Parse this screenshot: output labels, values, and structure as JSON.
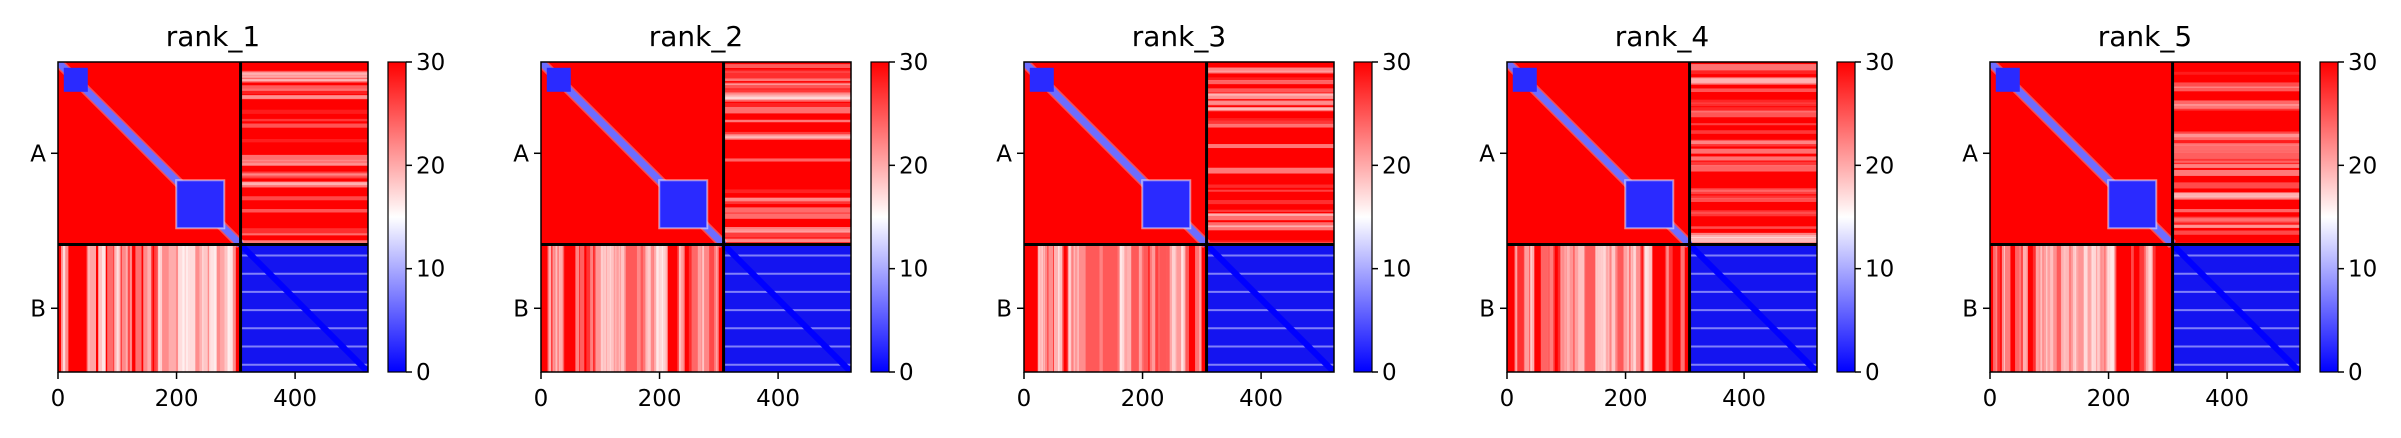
{
  "chart_data": [
    {
      "type": "heatmap",
      "title": "rank_1",
      "x_ticks": [
        0,
        200,
        400
      ],
      "xlim": [
        0,
        523
      ],
      "y_tick_labels": [
        "A",
        "B"
      ],
      "chain_lengths": [
        308,
        215
      ],
      "colorbar": {
        "min": 0,
        "max": 30,
        "ticks": [
          0,
          10,
          20,
          30
        ],
        "colors": [
          "#0000ff",
          "#ffffff",
          "#ff0000"
        ]
      }
    },
    {
      "type": "heatmap",
      "title": "rank_2",
      "x_ticks": [
        0,
        200,
        400
      ],
      "xlim": [
        0,
        523
      ],
      "y_tick_labels": [
        "A",
        "B"
      ],
      "chain_lengths": [
        308,
        215
      ],
      "colorbar": {
        "min": 0,
        "max": 30,
        "ticks": [
          0,
          10,
          20,
          30
        ],
        "colors": [
          "#0000ff",
          "#ffffff",
          "#ff0000"
        ]
      }
    },
    {
      "type": "heatmap",
      "title": "rank_3",
      "x_ticks": [
        0,
        200,
        400
      ],
      "xlim": [
        0,
        523
      ],
      "y_tick_labels": [
        "A",
        "B"
      ],
      "chain_lengths": [
        308,
        215
      ],
      "colorbar": {
        "min": 0,
        "max": 30,
        "ticks": [
          0,
          10,
          20,
          30
        ],
        "colors": [
          "#0000ff",
          "#ffffff",
          "#ff0000"
        ]
      }
    },
    {
      "type": "heatmap",
      "title": "rank_4",
      "x_ticks": [
        0,
        200,
        400
      ],
      "xlim": [
        0,
        523
      ],
      "y_tick_labels": [
        "A",
        "B"
      ],
      "chain_lengths": [
        308,
        215
      ],
      "colorbar": {
        "min": 0,
        "max": 30,
        "ticks": [
          0,
          10,
          20,
          30
        ],
        "colors": [
          "#0000ff",
          "#ffffff",
          "#ff0000"
        ]
      }
    },
    {
      "type": "heatmap",
      "title": "rank_5",
      "x_ticks": [
        0,
        200,
        400
      ],
      "xlim": [
        0,
        523
      ],
      "y_tick_labels": [
        "A",
        "B"
      ],
      "chain_lengths": [
        308,
        215
      ],
      "colorbar": {
        "min": 0,
        "max": 30,
        "ticks": [
          0,
          10,
          20,
          30
        ],
        "colors": [
          "#0000ff",
          "#ffffff",
          "#ff0000"
        ]
      }
    }
  ]
}
